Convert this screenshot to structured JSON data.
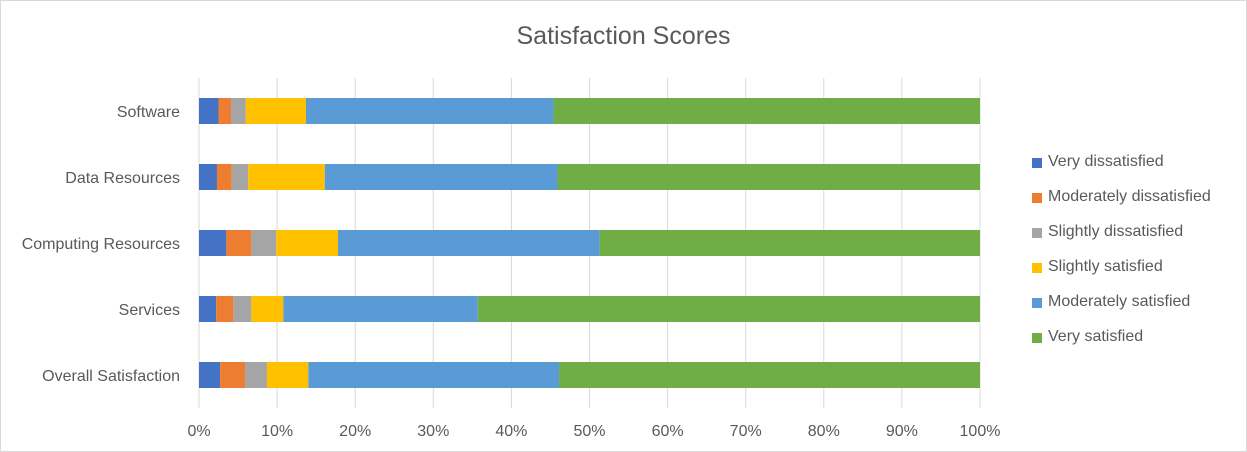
{
  "chart_data": {
    "type": "bar",
    "orientation": "horizontal",
    "stacked": "100%",
    "title": "Satisfaction Scores",
    "xlabel": "",
    "ylabel": "",
    "xlim": [
      0,
      100
    ],
    "x_ticks": [
      "0%",
      "10%",
      "20%",
      "30%",
      "40%",
      "50%",
      "60%",
      "70%",
      "80%",
      "90%",
      "100%"
    ],
    "categories": [
      "Software",
      "Data Resources",
      "Computing Resources",
      "Services",
      "Overall Satisfaction"
    ],
    "series": [
      {
        "name": "Very dissatisfied",
        "color": "#4472C4",
        "values": [
          2.5,
          2.3,
          3.5,
          2.2,
          2.7
        ]
      },
      {
        "name": "Moderately dissatisfied",
        "color": "#ED7D31",
        "values": [
          1.6,
          1.9,
          3.2,
          2.2,
          3.2
        ]
      },
      {
        "name": "Slightly dissatisfied",
        "color": "#A5A5A5",
        "values": [
          1.9,
          2.1,
          3.2,
          2.3,
          2.8
        ]
      },
      {
        "name": "Slightly satisfied",
        "color": "#FFC000",
        "values": [
          7.7,
          9.8,
          7.9,
          4.1,
          5.3
        ]
      },
      {
        "name": "Moderately satisfied",
        "color": "#5B9BD5",
        "values": [
          31.7,
          29.8,
          33.5,
          24.9,
          32.1
        ]
      },
      {
        "name": "Very satisfied",
        "color": "#70AD47",
        "values": [
          54.6,
          54.1,
          48.7,
          64.3,
          53.9
        ]
      }
    ],
    "grid": true,
    "legend_position": "right"
  }
}
